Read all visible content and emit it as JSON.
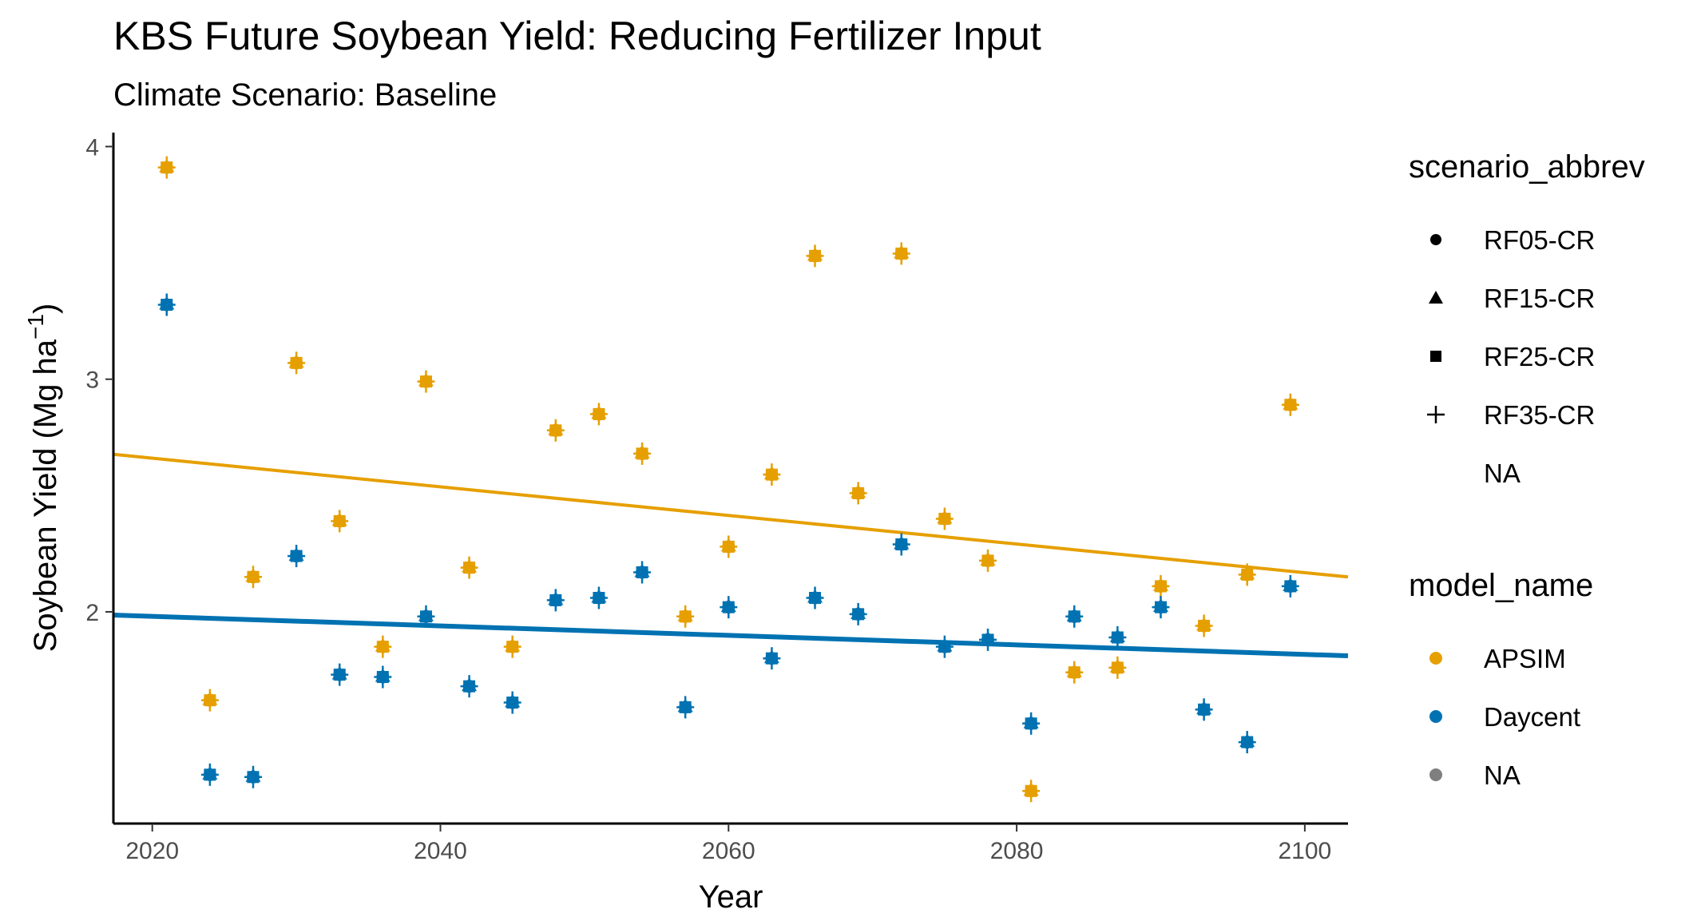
{
  "chart_data": {
    "type": "scatter",
    "title": "KBS Future Soybean Yield: Reducing Fertilizer Input",
    "subtitle": "Climate Scenario: Baseline",
    "xlabel": "Year",
    "ylabel_main": "Soybean Yield (Mg ha",
    "ylabel_sup": "−1",
    "ylabel_close": ")",
    "xlim": [
      2017.3,
      2103
    ],
    "ylim": [
      1.09,
      4.06
    ],
    "x_ticks": [
      2020,
      2040,
      2060,
      2080,
      2100
    ],
    "y_ticks": [
      2,
      3,
      4
    ],
    "grid": false,
    "legend_position": "right",
    "colors": {
      "APSIM": "#E69F00",
      "Daycent": "#0072B2",
      "NA": "#7f7f7f"
    },
    "legends": [
      {
        "title": "scenario_abbrev",
        "items": [
          {
            "label": "RF05-CR",
            "shape": "circle"
          },
          {
            "label": "RF15-CR",
            "shape": "triangle"
          },
          {
            "label": "RF25-CR",
            "shape": "square"
          },
          {
            "label": "RF35-CR",
            "shape": "plus"
          },
          {
            "label": "NA",
            "shape": "none"
          }
        ]
      },
      {
        "title": "model_name",
        "items": [
          {
            "label": "APSIM",
            "color": "#E69F00"
          },
          {
            "label": "Daycent",
            "color": "#0072B2"
          },
          {
            "label": "NA",
            "color": "#7f7f7f"
          }
        ]
      }
    ],
    "series": [
      {
        "name": "APSIM",
        "x": [
          2021,
          2024,
          2027,
          2030,
          2033,
          2036,
          2039,
          2042,
          2045,
          2048,
          2051,
          2054,
          2057,
          2060,
          2063,
          2066,
          2069,
          2072,
          2075,
          2078,
          2081,
          2084,
          2087,
          2090,
          2093,
          2096,
          2099
        ],
        "y": [
          3.91,
          1.62,
          2.15,
          3.07,
          2.39,
          1.85,
          2.99,
          2.19,
          1.85,
          2.78,
          2.85,
          2.68,
          1.98,
          2.28,
          2.59,
          3.53,
          2.51,
          3.54,
          2.4,
          2.22,
          1.23,
          1.74,
          1.76,
          2.11,
          1.94,
          2.16,
          2.89
        ],
        "trend": {
          "x": [
            2017.3,
            2103
          ],
          "y": [
            2.677,
            2.15
          ]
        }
      },
      {
        "name": "Daycent",
        "x": [
          2021,
          2024,
          2027,
          2030,
          2033,
          2036,
          2039,
          2042,
          2045,
          2048,
          2051,
          2054,
          2057,
          2060,
          2063,
          2066,
          2069,
          2072,
          2075,
          2078,
          2081,
          2084,
          2087,
          2090,
          2093,
          2096,
          2099
        ],
        "y": [
          3.32,
          1.3,
          1.29,
          2.24,
          1.73,
          1.72,
          1.98,
          1.68,
          1.61,
          2.05,
          2.06,
          2.17,
          1.59,
          2.02,
          1.8,
          2.06,
          1.99,
          2.29,
          1.85,
          1.88,
          1.52,
          1.98,
          1.89,
          2.02,
          1.58,
          1.44,
          2.11
        ],
        "trend": {
          "x": [
            2017.3,
            2103
          ],
          "y": [
            1.986,
            1.811
          ]
        }
      }
    ]
  }
}
